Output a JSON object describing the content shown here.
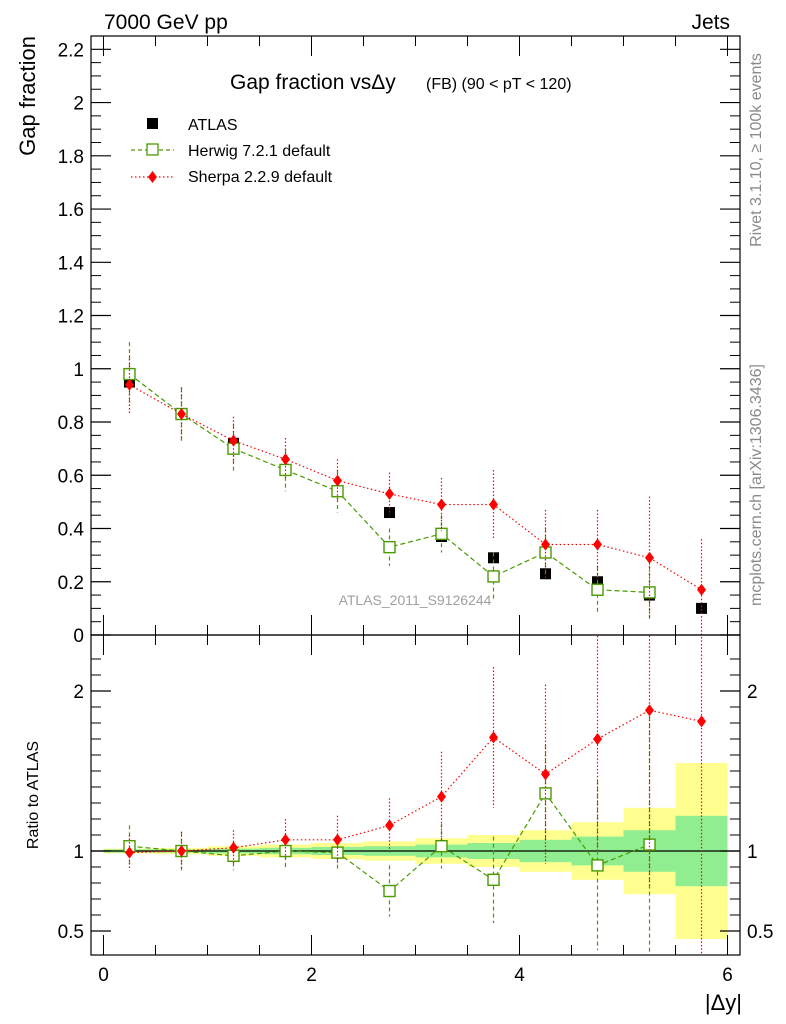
{
  "header": {
    "left": "7000 GeV pp",
    "right": "Jets"
  },
  "side_labels": {
    "rivet": "Rivet 3.1.10, ≥ 100k events",
    "mcplots": "mcplots.cern.ch [arXiv:1306.3436]"
  },
  "chart_data": [
    {
      "type": "scatter",
      "title_main": "Gap fraction vsΔy",
      "title_sub": "(FB) (90 < pT < 120)",
      "ylabel": "Gap fraction",
      "ylim": [
        0,
        2.25
      ],
      "xlim": [
        -0.12,
        6.12
      ],
      "yticks": [
        0,
        0.2,
        0.4,
        0.6,
        0.8,
        1,
        1.2,
        1.4,
        1.6,
        1.8,
        2,
        2.2
      ],
      "ytick_labels": [
        "0",
        "0.2",
        "0.4",
        "0.6",
        "0.8",
        "1",
        "1.2",
        "1.4",
        "1.6",
        "1.8",
        "2",
        "2.2"
      ],
      "watermark": "ATLAS_2011_S9126244",
      "legend_position": "top-left",
      "x": [
        0.25,
        0.75,
        1.25,
        1.75,
        2.25,
        2.75,
        3.25,
        3.75,
        4.25,
        4.75,
        5.25,
        5.75
      ],
      "series": [
        {
          "name": "ATLAS",
          "color": "#000000",
          "marker": "filled-square",
          "values": [
            0.95,
            0.83,
            0.72,
            0.62,
            0.54,
            0.46,
            0.37,
            0.29,
            0.23,
            0.2,
            0.15,
            0.1
          ],
          "err": [
            0.02,
            0.02,
            0.02,
            0.02,
            0.02,
            0.02,
            0.02,
            0.02,
            0.02,
            0.02,
            0.02,
            0.02
          ]
        },
        {
          "name": "Herwig 7.2.1 default",
          "color": "#4a9a00",
          "marker": "open-square",
          "line": "dashed",
          "values": [
            0.98,
            0.83,
            0.7,
            0.62,
            0.54,
            0.33,
            0.38,
            0.22,
            0.31,
            0.17,
            0.16,
            null
          ],
          "err": [
            0.12,
            0.1,
            0.09,
            0.08,
            0.08,
            0.07,
            0.07,
            0.09,
            0.09,
            0.09,
            0.1,
            null
          ]
        },
        {
          "name": "Sherpa 2.2.9 default",
          "color": "#ff0000",
          "marker": "filled-diamond",
          "line": "dotted",
          "values": [
            0.94,
            0.83,
            0.73,
            0.66,
            0.58,
            0.53,
            0.49,
            0.49,
            0.34,
            0.34,
            0.29,
            0.17
          ],
          "err": [
            0.11,
            0.1,
            0.09,
            0.08,
            0.08,
            0.08,
            0.1,
            0.13,
            0.13,
            0.13,
            0.23,
            0.19
          ]
        }
      ]
    },
    {
      "type": "scatter",
      "ylabel": "Ratio to ATLAS",
      "xlabel": "|Δy|",
      "ylim": [
        0.35,
        2.35
      ],
      "xlim": [
        -0.12,
        6.12
      ],
      "yticks": [
        0.5,
        1,
        2
      ],
      "ytick_labels": [
        "0.5",
        "1",
        "2"
      ],
      "xticks": [
        0,
        2,
        4,
        6
      ],
      "xtick_labels": [
        "0",
        "2",
        "4",
        "6"
      ],
      "x": [
        0.25,
        0.75,
        1.25,
        1.75,
        2.25,
        2.75,
        3.25,
        3.75,
        4.25,
        4.75,
        5.25,
        5.75
      ],
      "bands": {
        "edges": [
          0,
          0.5,
          1.0,
          1.5,
          2.0,
          2.5,
          3.0,
          3.5,
          4.0,
          4.5,
          5.0,
          5.5,
          6.0
        ],
        "green_color": "#90ee90",
        "yellow_color": "#ffff90",
        "green_halfwidth": [
          0.01,
          0.01,
          0.015,
          0.02,
          0.025,
          0.03,
          0.04,
          0.05,
          0.07,
          0.09,
          0.13,
          0.22
        ],
        "yellow_halfwidth": [
          0.015,
          0.02,
          0.03,
          0.04,
          0.05,
          0.06,
          0.08,
          0.1,
          0.13,
          0.18,
          0.27,
          0.55
        ]
      },
      "series": [
        {
          "name": "Herwig 7.2.1 default",
          "color": "#4a9a00",
          "marker": "open-square",
          "line": "dashed",
          "values": [
            1.03,
            1.0,
            0.97,
            1.0,
            0.99,
            0.75,
            1.03,
            0.82,
            1.36,
            0.91,
            1.04,
            null
          ],
          "err": [
            0.13,
            0.12,
            0.09,
            0.1,
            0.1,
            0.16,
            0.14,
            0.27,
            0.3,
            0.53,
            0.8,
            null
          ]
        },
        {
          "name": "Sherpa 2.2.9 default",
          "color": "#ff0000",
          "marker": "filled-diamond",
          "line": "dotted",
          "values": [
            0.99,
            1.0,
            1.02,
            1.07,
            1.07,
            1.16,
            1.34,
            1.71,
            1.48,
            1.7,
            1.88,
            1.81
          ],
          "err": [
            0.11,
            0.12,
            0.11,
            0.13,
            0.15,
            0.17,
            0.28,
            0.44,
            0.56,
            0.71,
            1.1,
            1.6
          ]
        }
      ]
    }
  ]
}
